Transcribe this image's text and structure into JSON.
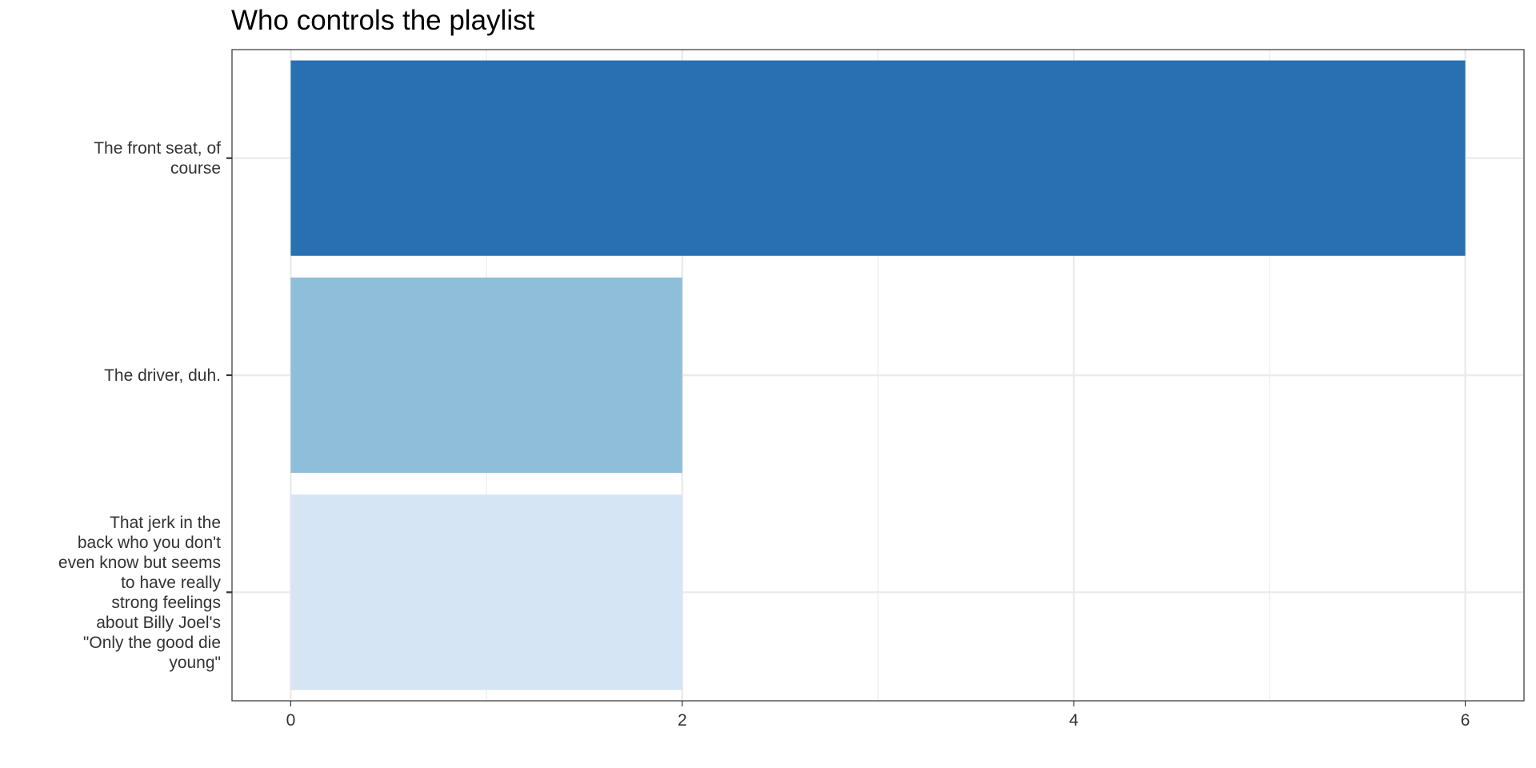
{
  "chart_data": {
    "type": "bar",
    "orientation": "horizontal",
    "title": "Who controls the playlist",
    "xlabel": "",
    "ylabel": "",
    "categories": [
      "The front seat, of course",
      "The driver, duh.",
      "That jerk in the back who you don't even know but seems to have really strong feelings about Billy Joel's \"Only the good die young\""
    ],
    "category_label_lines": [
      [
        "The front seat, of",
        "course"
      ],
      [
        "The driver, duh."
      ],
      [
        "That jerk in the",
        "back who you don't",
        "even know but seems",
        "to have really",
        "strong feelings",
        "about Billy Joel's",
        "\"Only the good die",
        "young\""
      ]
    ],
    "values": [
      6,
      2,
      2
    ],
    "colors": [
      "#2870b1",
      "#8fbedb",
      "#d6e5f4"
    ],
    "xlim": [
      -0.3,
      6.3
    ],
    "x_ticks": [
      0,
      2,
      4,
      6
    ],
    "x_tick_labels": [
      "0",
      "2",
      "4",
      "6"
    ],
    "grid": true,
    "legend": "none"
  }
}
